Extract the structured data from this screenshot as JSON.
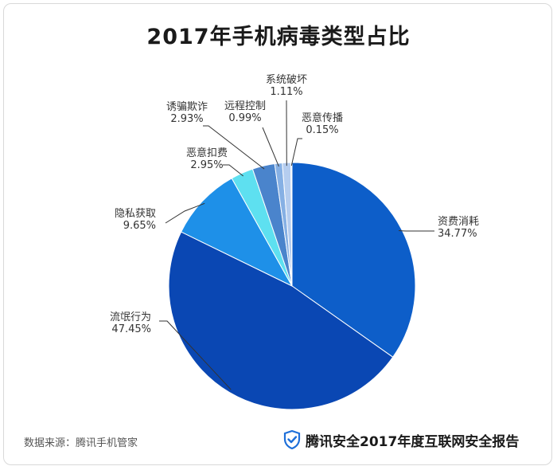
{
  "title": "2017年手机病毒类型占比",
  "footer": {
    "source": "数据来源：腾讯手机管家",
    "brand": "腾讯安全2017年度互联网安全报告",
    "brand_icon": "shield-check-icon"
  },
  "chart_data": {
    "type": "pie",
    "title": "2017年手机病毒类型占比",
    "slices": [
      {
        "label": "资费消耗",
        "value_text": "34.77%",
        "value": 34.77,
        "color": "#0d5ec9"
      },
      {
        "label": "流氓行为",
        "value_text": "47.45%",
        "value": 47.45,
        "color": "#0a47b3"
      },
      {
        "label": "隐私获取",
        "value_text": "9.65%",
        "value": 9.65,
        "color": "#1e90e8"
      },
      {
        "label": "恶意扣费",
        "value_text": "2.95%",
        "value": 2.95,
        "color": "#5ee0f0"
      },
      {
        "label": "诱骗欺诈",
        "value_text": "2.93%",
        "value": 2.93,
        "color": "#4a84cc"
      },
      {
        "label": "远程控制",
        "value_text": "0.99%",
        "value": 0.99,
        "color": "#86b0e4"
      },
      {
        "label": "系统破坏",
        "value_text": "1.11%",
        "value": 1.11,
        "color": "#b5cdef"
      },
      {
        "label": "恶意传播",
        "value_text": "0.15%",
        "value": 0.15,
        "color": "#d8e6f8"
      }
    ]
  }
}
